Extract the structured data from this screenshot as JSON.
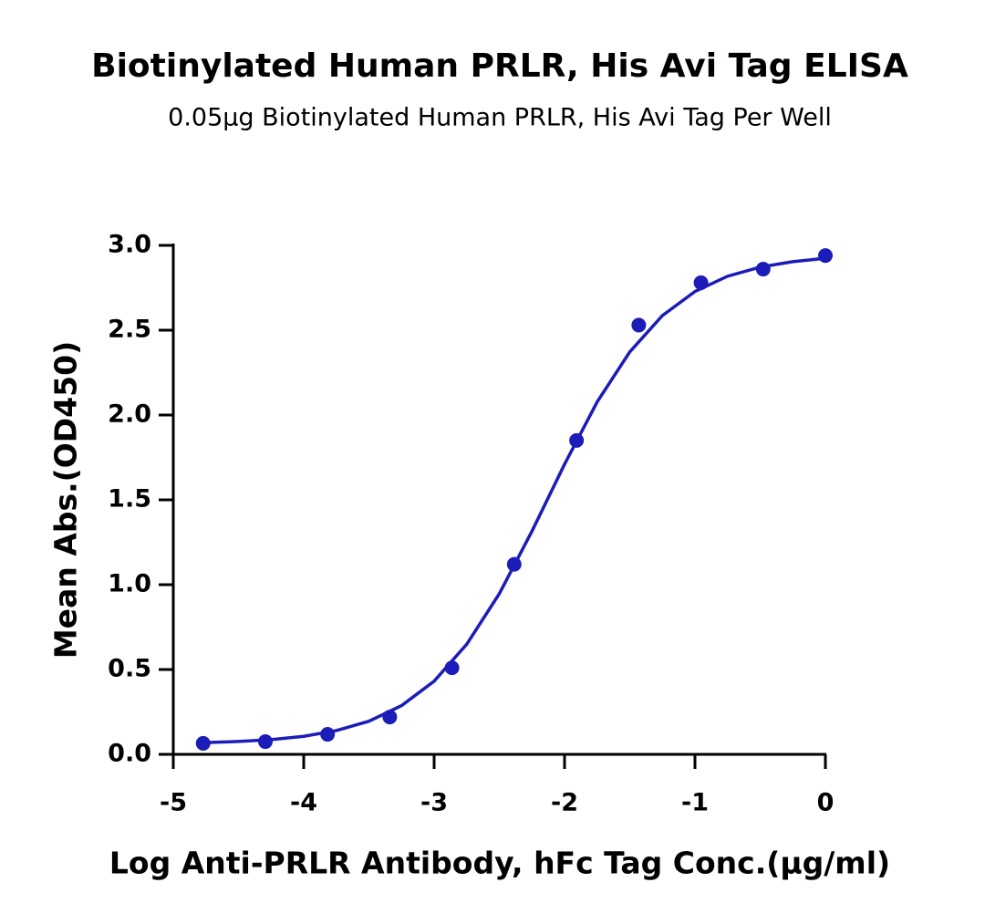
{
  "chart_data": {
    "type": "scatter",
    "title": "Biotinylated Human PRLR, His Avi Tag ELISA",
    "subtitle": "0.05μg Biotinylated Human PRLR, His Avi Tag Per Well",
    "x_label": "Log Anti-PRLR Antibody, hFc Tag Conc.(μg/ml)",
    "y_label": "Mean Abs.(OD450)",
    "color": "#1c1cb8",
    "x": [
      -4.771,
      -4.294,
      -3.817,
      -3.34,
      -2.863,
      -2.386,
      -1.908,
      -1.431,
      -0.954,
      -0.477,
      0
    ],
    "values": [
      0.065,
      0.075,
      0.118,
      0.22,
      0.51,
      1.12,
      1.85,
      2.53,
      2.78,
      2.86,
      2.94
    ],
    "curve": {
      "x": [
        -4.75,
        -4.5,
        -4.25,
        -4.0,
        -3.75,
        -3.5,
        -3.25,
        -3.0,
        -2.75,
        -2.5,
        -2.25,
        -2.0,
        -1.75,
        -1.5,
        -1.25,
        -1.0,
        -0.75,
        -0.5,
        -0.25,
        0
      ],
      "values": [
        0.069,
        0.076,
        0.087,
        0.106,
        0.14,
        0.195,
        0.287,
        0.431,
        0.649,
        0.947,
        1.315,
        1.71,
        2.077,
        2.372,
        2.586,
        2.728,
        2.818,
        2.872,
        2.904,
        2.924
      ]
    },
    "xlim": [
      -5,
      0
    ],
    "ylim": [
      0,
      3
    ],
    "xticks": [
      -5,
      -4,
      -3,
      -2,
      -1,
      0
    ],
    "yticks": [
      {
        "value": 0,
        "label": "0.0"
      },
      0.5,
      {
        "value": 1,
        "label": "1.0"
      },
      1.5,
      {
        "value": 2,
        "label": "2.0"
      },
      2.5,
      {
        "value": 3,
        "label": "3.0"
      }
    ]
  }
}
